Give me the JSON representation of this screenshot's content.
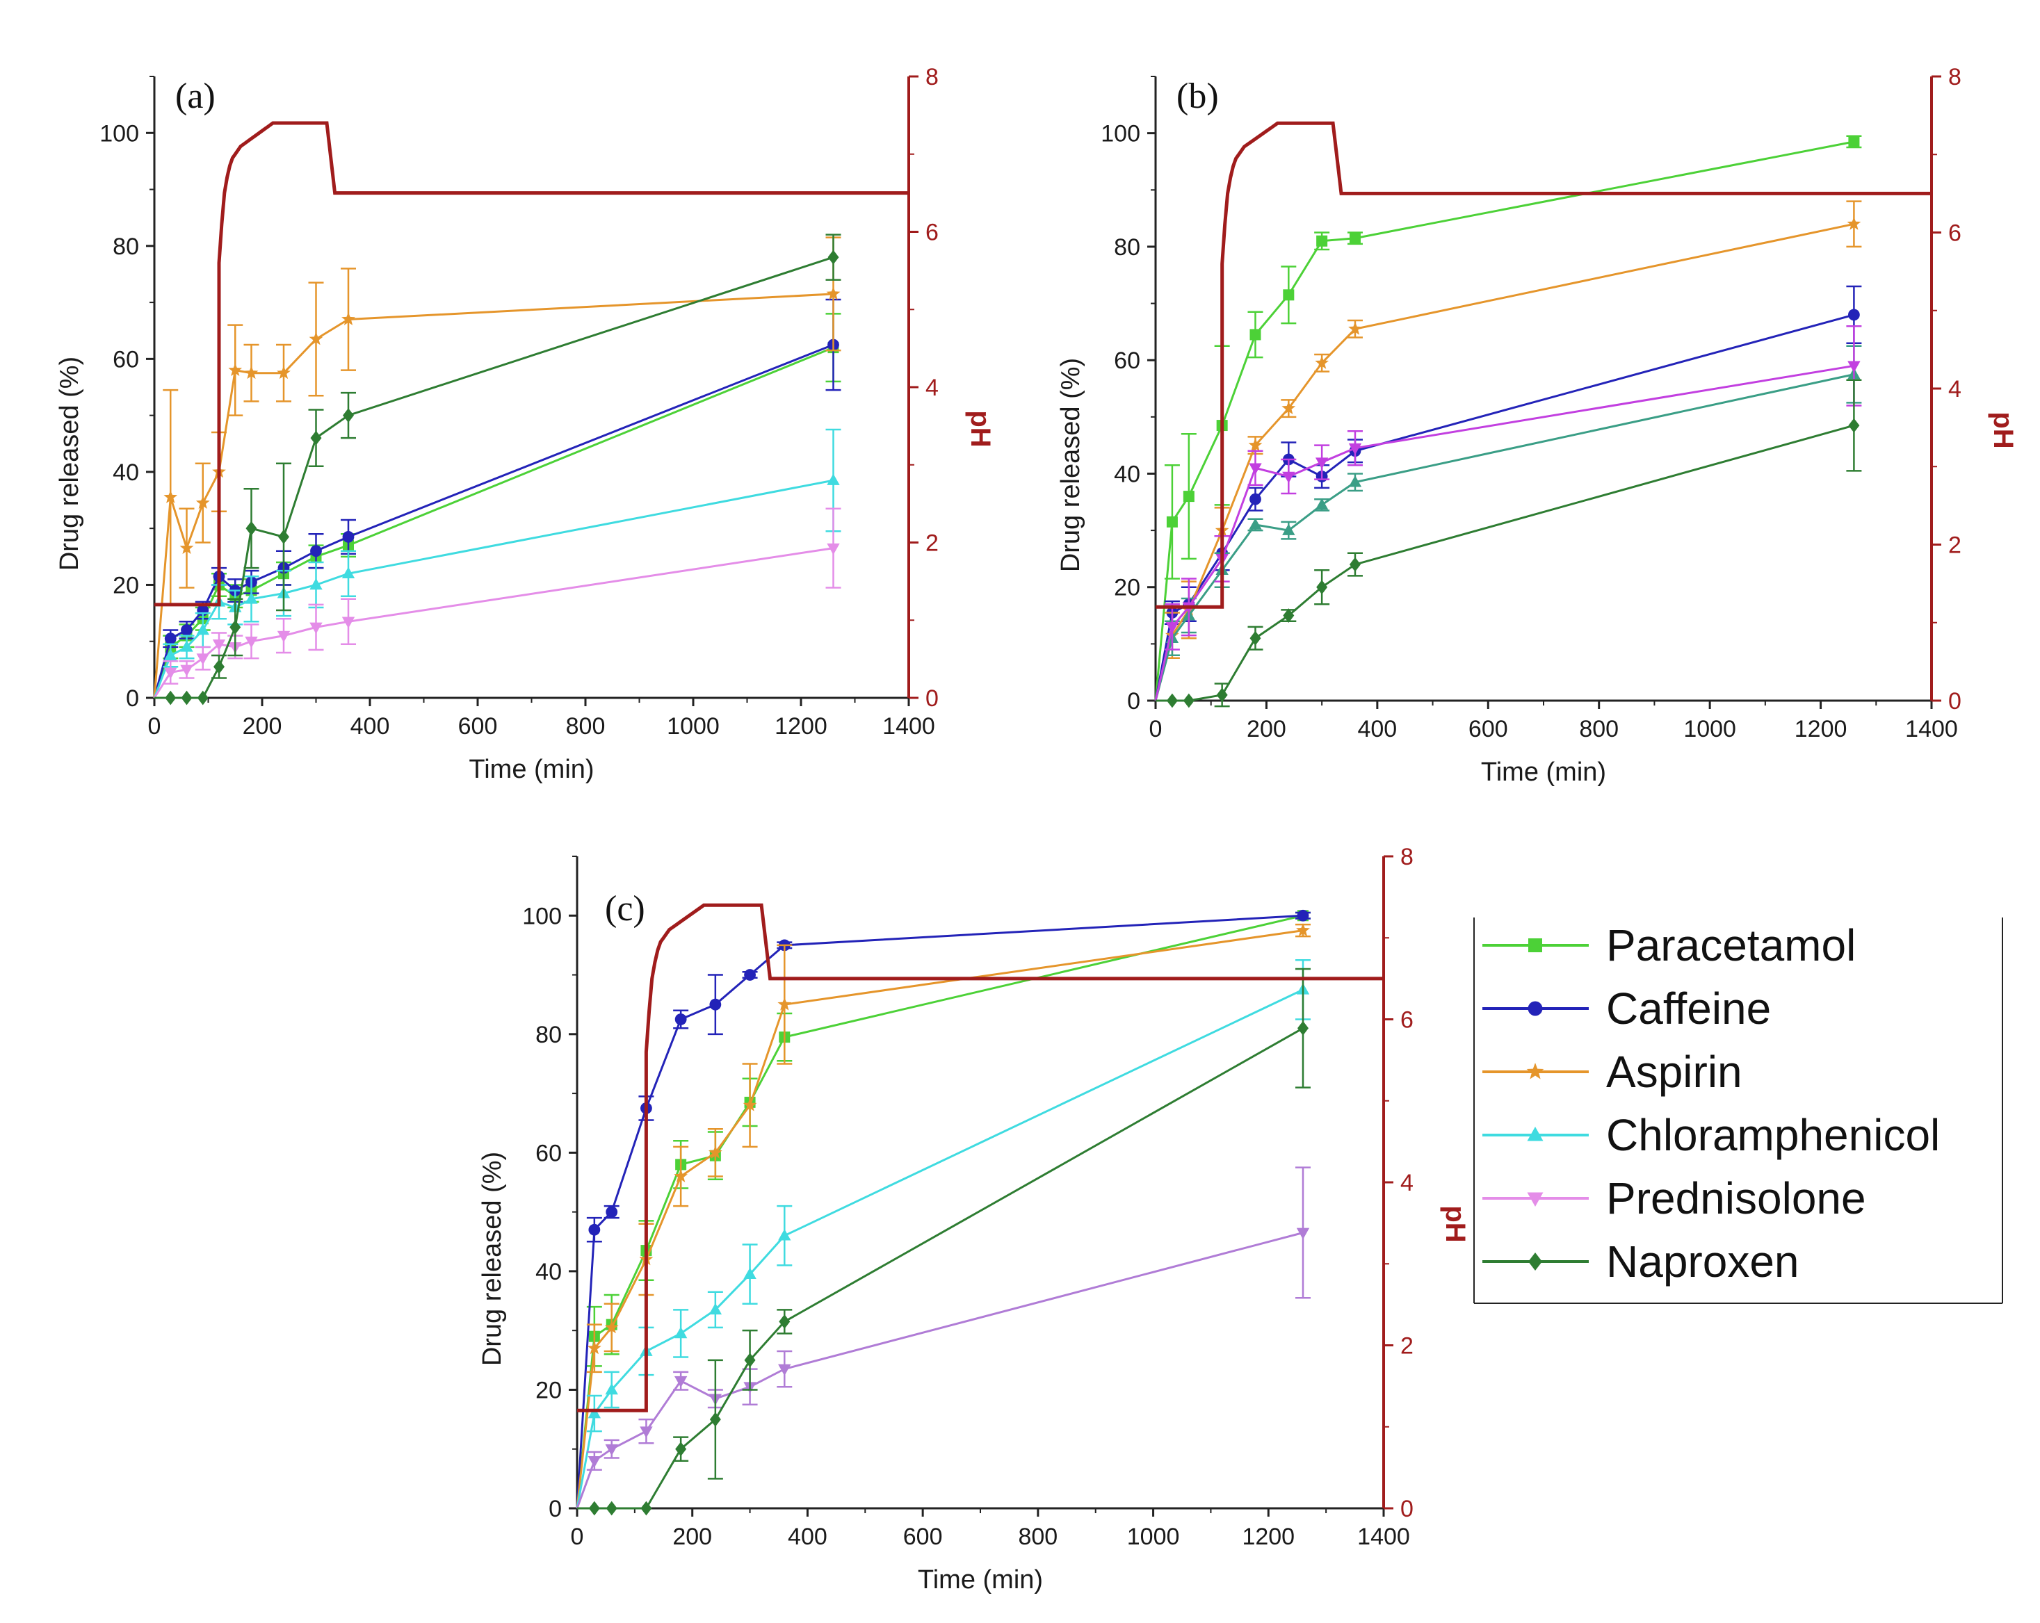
{
  "chart_data": [
    {
      "type": "line",
      "panel_label": "(a)",
      "xlabel": "Time (min)",
      "ylabel": "Drug released (%)",
      "y2label": "pH",
      "xlim": [
        0,
        1400
      ],
      "ylim": [
        0,
        110
      ],
      "y2lim": [
        0,
        8
      ],
      "xticks": [
        "0",
        "200",
        "400",
        "600",
        "800",
        "1000",
        "1200",
        "1400"
      ],
      "yticks": [
        "0",
        "20",
        "40",
        "60",
        "80",
        "100"
      ],
      "y2ticks": [
        "0",
        "2",
        "4",
        "6",
        "8"
      ],
      "x": [
        0,
        30,
        60,
        90,
        120,
        150,
        180,
        240,
        300,
        360,
        1260
      ],
      "ph_profile": {
        "x": [
          0,
          120,
          120,
          125,
          130,
          135,
          140,
          145,
          150,
          160,
          170,
          180,
          190,
          200,
          210,
          220,
          240,
          300,
          320,
          335,
          1400
        ],
        "y": [
          1.2,
          1.2,
          5.6,
          6.1,
          6.5,
          6.7,
          6.85,
          6.95,
          7.0,
          7.1,
          7.15,
          7.2,
          7.25,
          7.3,
          7.35,
          7.4,
          7.4,
          7.4,
          7.4,
          6.5,
          6.5
        ]
      },
      "series": [
        {
          "name": "Paracetamol",
          "color": "#4cd137",
          "marker": "square",
          "values": [
            0,
            9,
            11,
            14,
            20,
            18,
            19,
            22,
            25,
            27,
            62
          ],
          "errors": [
            0,
            2,
            2,
            2,
            2,
            2,
            2,
            2,
            2,
            2,
            6
          ]
        },
        {
          "name": "Caffeine",
          "color": "#2323b8",
          "marker": "circle",
          "values": [
            0,
            10.5,
            12,
            15.5,
            21.5,
            19,
            20.5,
            23,
            26,
            28.5,
            62.5
          ],
          "errors": [
            0,
            1.5,
            1.5,
            1.5,
            1.5,
            2,
            2,
            3,
            3,
            3,
            8
          ]
        },
        {
          "name": "Aspirin",
          "color": "#e5952b",
          "marker": "star",
          "values": [
            0,
            35.5,
            26.5,
            34.5,
            40,
            58,
            57.5,
            57.5,
            63.5,
            67,
            71.5
          ],
          "errors": [
            0,
            19,
            7,
            7,
            7,
            8,
            5,
            5,
            10,
            9,
            10
          ]
        },
        {
          "name": "Chloramphenicol",
          "color": "#3fdbe0",
          "marker": "triangle-up",
          "values": [
            0,
            7.5,
            9,
            12,
            17,
            16,
            17.5,
            18.5,
            20,
            22,
            38.5
          ],
          "errors": [
            0,
            2,
            2,
            3,
            3,
            3,
            4,
            4,
            4,
            4,
            9
          ]
        },
        {
          "name": "Prednisolone",
          "color": "#e48de8",
          "marker": "triangle-down",
          "values": [
            0,
            4.5,
            5,
            7,
            9.5,
            9,
            10,
            11,
            12.5,
            13.5,
            26.5
          ],
          "errors": [
            0,
            2,
            1.5,
            2,
            2,
            2,
            3,
            3,
            4,
            4,
            7
          ]
        },
        {
          "name": "Naproxen",
          "color": "#2e7d32",
          "marker": "diamond",
          "values": [
            0,
            0,
            0,
            0,
            5.5,
            12.5,
            30,
            28.5,
            46,
            50,
            78
          ],
          "errors": [
            0,
            0,
            0,
            0,
            2,
            5,
            7,
            13,
            5,
            4,
            4
          ]
        }
      ]
    },
    {
      "type": "line",
      "panel_label": "(b)",
      "xlabel": "Time (min)",
      "ylabel": "Drug released (%)",
      "y2label": "pH",
      "xlim": [
        0,
        1400
      ],
      "ylim": [
        0,
        110
      ],
      "y2lim": [
        0,
        8
      ],
      "xticks": [
        "0",
        "200",
        "400",
        "600",
        "800",
        "1000",
        "1200",
        "1400"
      ],
      "yticks": [
        "0",
        "20",
        "40",
        "60",
        "80",
        "100"
      ],
      "y2ticks": [
        "0",
        "2",
        "4",
        "6",
        "8"
      ],
      "x": [
        0,
        30,
        60,
        120,
        180,
        240,
        300,
        360,
        1260
      ],
      "ph_profile": {
        "x": [
          0,
          120,
          120,
          125,
          130,
          135,
          140,
          145,
          150,
          160,
          170,
          180,
          190,
          200,
          210,
          220,
          240,
          300,
          320,
          335,
          1400
        ],
        "y": [
          1.2,
          1.2,
          5.6,
          6.1,
          6.5,
          6.7,
          6.85,
          6.95,
          7.0,
          7.1,
          7.15,
          7.2,
          7.25,
          7.3,
          7.35,
          7.4,
          7.4,
          7.4,
          7.4,
          6.5,
          6.5
        ]
      },
      "series": [
        {
          "name": "Paracetamol",
          "color": "#4cd137",
          "marker": "square",
          "values": [
            0,
            31.5,
            36,
            48.5,
            64.5,
            71.5,
            81,
            81.5,
            98.5
          ],
          "errors": [
            0,
            10,
            11,
            14,
            4,
            5,
            1.5,
            1,
            1
          ]
        },
        {
          "name": "Caffeine",
          "color": "#2323b8",
          "marker": "circle",
          "values": [
            0,
            15.5,
            17,
            26,
            35.5,
            42.5,
            39.5,
            44,
            68
          ],
          "errors": [
            0,
            2,
            3,
            3,
            2,
            3,
            2,
            2,
            5
          ]
        },
        {
          "name": "Aspirin",
          "color": "#e5952b",
          "marker": "star",
          "values": [
            0,
            11.5,
            16,
            30,
            45,
            51.5,
            59.5,
            65.5,
            84
          ],
          "errors": [
            0,
            4,
            5,
            4,
            1.5,
            1.5,
            1.5,
            1.5,
            4
          ]
        },
        {
          "name": "Chloramphenicol",
          "color": "#3a9e86",
          "marker": "triangle-up",
          "values": [
            0,
            11,
            15,
            23,
            31,
            30,
            34.5,
            38.5,
            57.5
          ],
          "errors": [
            0,
            3,
            3,
            3,
            1,
            1.5,
            1,
            1.5,
            5
          ]
        },
        {
          "name": "Prednisolone",
          "color": "#c23fe0",
          "marker": "triangle-down",
          "values": [
            0,
            13,
            16.5,
            25,
            41,
            39.5,
            42,
            44.5,
            59
          ],
          "errors": [
            0,
            4,
            5,
            4,
            3,
            3,
            3,
            3,
            7
          ]
        },
        {
          "name": "Naproxen",
          "color": "#2e7d32",
          "marker": "diamond",
          "values": [
            0,
            0,
            0,
            1,
            11,
            15,
            20,
            24,
            48.5
          ],
          "errors": [
            0,
            0,
            0,
            2,
            2,
            1,
            3,
            2,
            8
          ]
        }
      ]
    },
    {
      "type": "line",
      "panel_label": "(c)",
      "xlabel": "Time (min)",
      "ylabel": "Drug released (%)",
      "y2label": "pH",
      "xlim": [
        0,
        1400
      ],
      "ylim": [
        0,
        110
      ],
      "y2lim": [
        0,
        8
      ],
      "xticks": [
        "0",
        "200",
        "400",
        "600",
        "800",
        "1000",
        "1200",
        "1400"
      ],
      "yticks": [
        "0",
        "20",
        "40",
        "60",
        "80",
        "100"
      ],
      "y2ticks": [
        "0",
        "2",
        "4",
        "6",
        "8"
      ],
      "x": [
        0,
        30,
        60,
        120,
        180,
        240,
        300,
        360,
        1260
      ],
      "ph_profile": {
        "x": [
          0,
          120,
          120,
          125,
          130,
          135,
          140,
          145,
          150,
          160,
          170,
          180,
          190,
          200,
          210,
          220,
          240,
          300,
          320,
          335,
          1400
        ],
        "y": [
          1.2,
          1.2,
          5.6,
          6.1,
          6.5,
          6.7,
          6.85,
          6.95,
          7.0,
          7.1,
          7.15,
          7.2,
          7.25,
          7.3,
          7.35,
          7.4,
          7.4,
          7.4,
          7.4,
          6.5,
          6.5
        ]
      },
      "series": [
        {
          "name": "Paracetamol",
          "color": "#4cd137",
          "marker": "square",
          "values": [
            0,
            29,
            31,
            43.5,
            58,
            59.5,
            68.5,
            79.5,
            100
          ],
          "errors": [
            0,
            5,
            5,
            5,
            4,
            4,
            4,
            4,
            0.5
          ]
        },
        {
          "name": "Caffeine",
          "color": "#2323b8",
          "marker": "circle",
          "values": [
            0,
            47,
            50,
            67.5,
            82.5,
            85,
            90,
            95,
            100
          ],
          "errors": [
            0,
            2,
            1,
            2,
            1.5,
            5,
            0.5,
            0.5,
            0.5
          ]
        },
        {
          "name": "Aspirin",
          "color": "#e5952b",
          "marker": "star",
          "values": [
            0,
            27,
            30.5,
            42,
            56,
            60,
            68,
            85,
            97.5
          ],
          "errors": [
            0,
            4,
            4,
            6,
            5,
            4,
            7,
            10,
            1
          ]
        },
        {
          "name": "Chloramphenicol",
          "color": "#3fdbe0",
          "marker": "triangle-up",
          "values": [
            0,
            16,
            20,
            26.5,
            29.5,
            33.5,
            39.5,
            46,
            87.5
          ],
          "errors": [
            0,
            3,
            3,
            4,
            4,
            3,
            5,
            5,
            5
          ]
        },
        {
          "name": "Prednisolone",
          "color": "#b07cd6",
          "marker": "triangle-down",
          "values": [
            0,
            8,
            10,
            13,
            21.5,
            18.5,
            20.5,
            23.5,
            46.5
          ],
          "errors": [
            0,
            1.5,
            1.5,
            2,
            1.5,
            1.5,
            3,
            3,
            11
          ]
        },
        {
          "name": "Naproxen",
          "color": "#2e7d32",
          "marker": "diamond",
          "values": [
            0,
            0,
            0,
            0,
            10,
            15,
            25,
            31.5,
            81
          ],
          "errors": [
            0,
            0,
            0,
            0,
            2,
            10,
            5,
            2,
            10
          ]
        }
      ]
    }
  ],
  "legend": {
    "entries": [
      {
        "label": "Paracetamol",
        "color": "#4cd137",
        "marker": "square"
      },
      {
        "label": "Caffeine",
        "color": "#2323b8",
        "marker": "circle"
      },
      {
        "label": "Aspirin",
        "color": "#e5952b",
        "marker": "star"
      },
      {
        "label": "Chloramphenicol",
        "color": "#3fdbe0",
        "marker": "triangle-up"
      },
      {
        "label": "Prednisolone",
        "color": "#e48de8",
        "marker": "triangle-down"
      },
      {
        "label": "Naproxen",
        "color": "#2e7d32",
        "marker": "diamond"
      }
    ]
  },
  "colors": {
    "axis": "#222222",
    "ph_axis": "#a01c1c",
    "ph_line": "#a01c1c"
  }
}
